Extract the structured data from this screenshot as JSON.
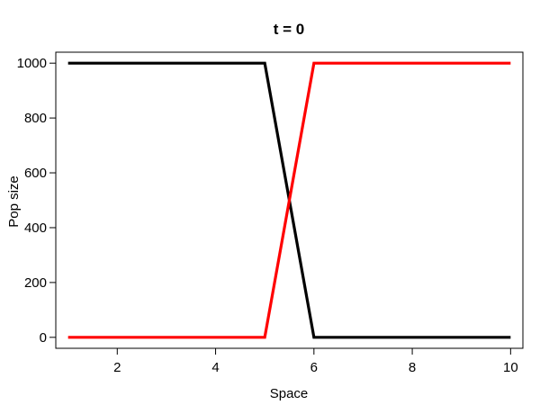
{
  "chart_data": {
    "type": "line",
    "title": "t = 0",
    "xlabel": "Space",
    "ylabel": "Pop size",
    "xlim": [
      0.75,
      10.25
    ],
    "ylim": [
      -40,
      1040
    ],
    "x_ticks": [
      2,
      4,
      6,
      8,
      10
    ],
    "y_ticks": [
      0,
      200,
      400,
      600,
      800,
      1000
    ],
    "grid": false,
    "legend": "none",
    "x": [
      1,
      2,
      3,
      4,
      5,
      6,
      7,
      8,
      9,
      10
    ],
    "series": [
      {
        "color": "#000000",
        "values": [
          1000,
          1000,
          1000,
          1000,
          1000,
          0,
          0,
          0,
          0,
          0
        ]
      },
      {
        "color": "#ff0000",
        "values": [
          0,
          0,
          0,
          0,
          0,
          1000,
          1000,
          1000,
          1000,
          1000
        ]
      }
    ]
  }
}
